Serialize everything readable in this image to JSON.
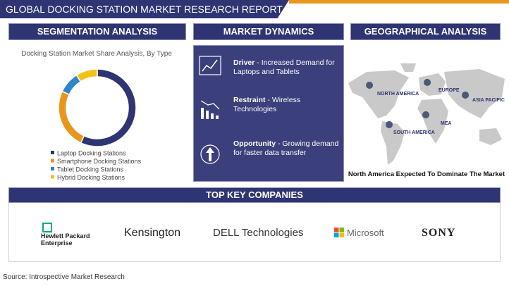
{
  "header": {
    "title": "GLOBAL DOCKING STATION MARKET RESEARCH REPORT"
  },
  "segmentation": {
    "heading": "SEGMENTATION ANALYSIS"
  },
  "chart_data": {
    "type": "pie",
    "donut": true,
    "title": "Docking Station Market Share Analysis, By Type",
    "categories": [
      "Laptop Docking Stations",
      "Smartphone Docking Stations",
      "Tablet Docking Stations",
      "Hybrid Docking Stations"
    ],
    "values": [
      57,
      25,
      9,
      9
    ],
    "colors": [
      "#2f3473",
      "#e8961e",
      "#2e86c8",
      "#f2c21b"
    ]
  },
  "dynamics": {
    "heading": "MARKET DYNAMICS",
    "items": [
      {
        "label": "Driver",
        "text": " - Increased Demand for Laptops and Tablets"
      },
      {
        "label": "Restraint",
        "text": " - Wireless Technologies"
      },
      {
        "label": "Opportunity",
        "text": " - Growing demand for faster data transfer"
      }
    ]
  },
  "geography": {
    "heading": "GEOGRAPHICAL ANALYSIS",
    "regions": [
      "NORTH AMERICA",
      "EUROPE",
      "ASIA PACIFIC",
      "MEA",
      "SOUTH AMERICA"
    ],
    "caption": "North America Expected To Dominate The Market"
  },
  "companies": {
    "heading": "TOP KEY COMPANIES",
    "names": [
      "Hewlett Packard Enterprise",
      "Kensington",
      "DELL Technologies",
      "Microsoft",
      "SONY"
    ]
  },
  "source": "Source: Introspective Market Research"
}
